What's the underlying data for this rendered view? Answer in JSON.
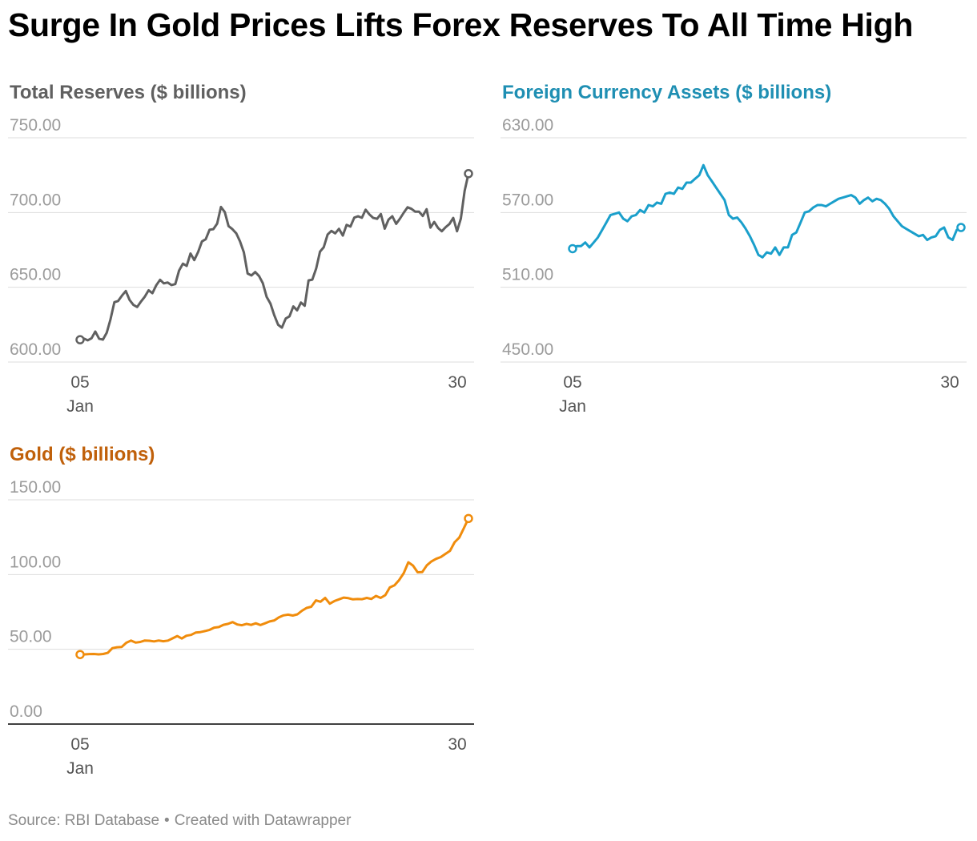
{
  "headline": "Surge In Gold Prices Lifts Forex Reserves To All Time High",
  "footer": {
    "source": "Source: RBI Database",
    "separator": "•",
    "credit": "Created with Datawrapper"
  },
  "colors": {
    "total": "#606060",
    "fca": "#1a9fcb",
    "gold": "#f08c0c",
    "fca_title": "#1f8fb3",
    "gold_title": "#c0600a",
    "grid": "#dddddd",
    "tick": "#9b9b9b"
  },
  "chart_data": [
    {
      "id": "total",
      "type": "line",
      "title": "Total Reserves ($ billions)",
      "y_ticks": [
        "750.00",
        "700.00",
        "650.00",
        "600.00"
      ],
      "ylim": [
        600,
        750
      ],
      "x_tick_labels": [
        {
          "top": "05",
          "bottom": "Jan"
        },
        {
          "top": "30",
          "bottom": ""
        }
      ],
      "x_range": [
        0,
        100
      ],
      "values": [
        614.9,
        615.7,
        614.5,
        615.9,
        620.4,
        615.6,
        615.0,
        619.6,
        628.6,
        640.0,
        640.8,
        644.4,
        647.5,
        641.5,
        638.2,
        636.8,
        640.5,
        643.7,
        648.0,
        646.0,
        651.3,
        655.0,
        652.6,
        653.2,
        651.5,
        652.1,
        661.2,
        665.8,
        664.3,
        672.6,
        668.2,
        673.6,
        680.7,
        682.1,
        688.5,
        688.9,
        692.6,
        703.7,
        700.3,
        690.9,
        688.9,
        686.1,
        680.7,
        673.4,
        659.2,
        657.9,
        660.2,
        657.5,
        652.7,
        643.5,
        639.1,
        631.3,
        624.9,
        623.0,
        629.1,
        630.6,
        637.2,
        634.6,
        639.8,
        637.6,
        654.6,
        655.1,
        662.5,
        673.8,
        676.8,
        685.3,
        687.7,
        686.1,
        689.1,
        684.6,
        691.7,
        690.6,
        696.6,
        697.5,
        696.5,
        701.9,
        698.7,
        696.4,
        695.8,
        699.0,
        689.2,
        695.2,
        697.5,
        692.4,
        695.9,
        699.9,
        703.5,
        702.5,
        700.6,
        700.6,
        697.7,
        702.2,
        689.9,
        693.7,
        689.7,
        687.5,
        690.2,
        692.3,
        696.4,
        687.5,
        696.0,
        714.5,
        726.0
      ],
      "color_key": "total",
      "title_color_key": "total",
      "axis_line": false
    },
    {
      "id": "fca",
      "type": "line",
      "title": "Foreign Currency Assets ($ billions)",
      "y_ticks": [
        "630.00",
        "570.00",
        "510.00",
        "450.00"
      ],
      "ylim": [
        450,
        630
      ],
      "x_tick_labels": [
        {
          "top": "05",
          "bottom": "Jan"
        },
        {
          "top": "30",
          "bottom": ""
        }
      ],
      "x_range": [
        0,
        100
      ],
      "values": [
        541,
        543,
        543,
        546,
        542,
        546,
        550,
        556,
        562,
        568,
        569,
        570,
        565,
        563,
        567,
        568,
        572,
        570,
        576,
        575,
        578,
        577,
        585,
        586,
        585,
        590,
        589,
        594,
        594,
        597,
        600,
        608,
        600,
        595,
        590,
        585,
        580,
        568,
        565,
        566,
        562,
        557,
        551,
        544,
        536,
        534,
        538,
        537,
        542,
        536,
        542,
        542,
        552,
        554,
        562,
        570,
        571,
        574,
        576,
        576,
        575,
        577,
        579,
        581,
        582,
        583,
        584,
        582,
        577,
        580,
        582,
        579,
        581,
        580,
        577,
        573,
        567,
        563,
        559,
        557,
        555,
        553,
        551,
        552,
        548,
        550,
        551,
        556,
        558,
        550,
        548,
        556,
        558
      ],
      "color_key": "fca",
      "title_color_key": "fca_title",
      "axis_line": false
    },
    {
      "id": "gold",
      "type": "line",
      "title": "Gold ($ billions)",
      "y_ticks": [
        "150.00",
        "100.00",
        "50.00",
        "0.00"
      ],
      "ylim": [
        0,
        150
      ],
      "x_tick_labels": [
        {
          "top": "05",
          "bottom": "Jan"
        },
        {
          "top": "30",
          "bottom": ""
        }
      ],
      "x_range": [
        0,
        100
      ],
      "values": [
        46.5,
        46.6,
        46.8,
        46.9,
        46.6,
        46.9,
        47.6,
        50.8,
        51.4,
        51.6,
        54.4,
        55.8,
        54.5,
        54.9,
        55.9,
        55.7,
        55.3,
        55.9,
        55.4,
        55.8,
        57.3,
        58.9,
        57.2,
        59.1,
        59.6,
        61.2,
        61.5,
        62.2,
        63.0,
        64.5,
        64.9,
        66.4,
        67.0,
        68.2,
        66.6,
        66.1,
        67.0,
        66.3,
        67.4,
        66.2,
        67.4,
        68.6,
        69.3,
        71.4,
        72.7,
        73.2,
        72.6,
        73.4,
        75.8,
        77.7,
        78.5,
        82.7,
        81.8,
        84.4,
        80.5,
        82.3,
        83.4,
        84.6,
        84.2,
        83.4,
        83.6,
        83.5,
        84.4,
        83.7,
        85.7,
        84.4,
        86.2,
        91.4,
        92.8,
        96.3,
        101.0,
        108.2,
        106.0,
        101.5,
        101.7,
        106.2,
        108.8,
        110.5,
        111.7,
        113.8,
        115.8,
        121.6,
        124.7,
        131.0,
        137.5
      ],
      "color_key": "gold",
      "title_color_key": "gold_title",
      "axis_line": true
    }
  ]
}
